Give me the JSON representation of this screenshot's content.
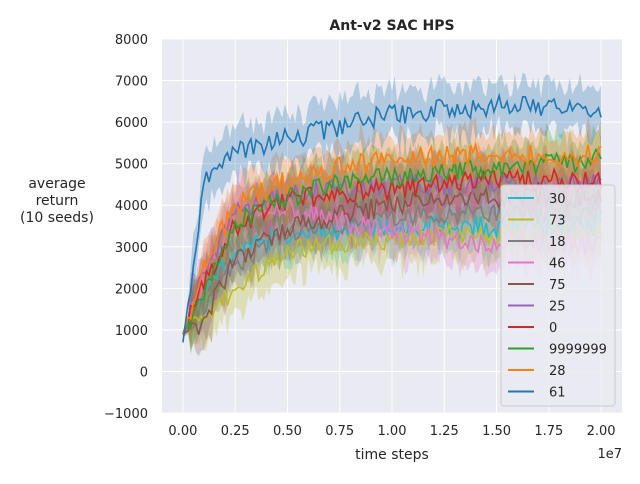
{
  "chart_data": {
    "type": "line",
    "title": "Ant-v2 SAC HPS",
    "xlabel": "time steps",
    "ylabel": [
      "average",
      "return",
      "(10 seeds)"
    ],
    "x_offset_label": "1e7",
    "xlim": [
      -0.1,
      2.1
    ],
    "ylim": [
      -1000,
      8000
    ],
    "x_ticks": [
      0.0,
      0.25,
      0.5,
      0.75,
      1.0,
      1.25,
      1.5,
      1.75,
      2.0
    ],
    "x_tick_labels": [
      "0.00",
      "0.25",
      "0.50",
      "0.75",
      "1.00",
      "1.25",
      "1.50",
      "1.75",
      "2.00"
    ],
    "y_ticks": [
      -1000,
      0,
      1000,
      2000,
      3000,
      4000,
      5000,
      6000,
      7000,
      8000
    ],
    "y_tick_labels": [
      "−1000",
      "0",
      "1000",
      "2000",
      "3000",
      "4000",
      "5000",
      "6000",
      "7000",
      "8000"
    ],
    "grid": true,
    "legend_position": "center-right",
    "x": [
      0.0,
      0.1,
      0.25,
      0.5,
      0.75,
      1.0,
      1.25,
      1.5,
      1.75,
      2.0
    ],
    "series": [
      {
        "name": "30",
        "color": "#17becf",
        "values": [
          900,
          1800,
          2900,
          3300,
          3400,
          3500,
          3500,
          3500,
          3500,
          3500
        ]
      },
      {
        "name": "73",
        "color": "#bcbd22",
        "values": [
          900,
          1300,
          2000,
          2900,
          3100,
          3200,
          3300,
          3300,
          3400,
          3400
        ]
      },
      {
        "name": "18",
        "color": "#7f7f7f",
        "values": [
          900,
          1600,
          2600,
          3300,
          3500,
          3700,
          3800,
          3800,
          3800,
          3800
        ]
      },
      {
        "name": "46",
        "color": "#e377c2",
        "values": [
          900,
          2200,
          3900,
          3900,
          3600,
          3400,
          3200,
          3100,
          3100,
          3000
        ]
      },
      {
        "name": "75",
        "color": "#8c564b",
        "values": [
          900,
          1200,
          2700,
          3400,
          3800,
          4000,
          4100,
          4200,
          4200,
          4200
        ]
      },
      {
        "name": "25",
        "color": "#9467bd",
        "values": [
          900,
          2400,
          3800,
          4300,
          4400,
          4500,
          4500,
          4500,
          4500,
          4500
        ]
      },
      {
        "name": "0",
        "color": "#d62728",
        "values": [
          900,
          2100,
          3500,
          4100,
          4300,
          4400,
          4500,
          4600,
          4600,
          4600
        ]
      },
      {
        "name": "9999999",
        "color": "#2ca02c",
        "values": [
          900,
          2000,
          3600,
          4200,
          4500,
          4700,
          4800,
          4900,
          5000,
          5100
        ]
      },
      {
        "name": "28",
        "color": "#ff7f0e",
        "values": [
          900,
          2500,
          4000,
          4600,
          4900,
          5100,
          5200,
          5200,
          5200,
          5200
        ]
      },
      {
        "name": "61",
        "color": "#1f77b4",
        "values": [
          700,
          4500,
          5300,
          5600,
          5900,
          6200,
          6300,
          6400,
          6400,
          6200
        ]
      }
    ]
  }
}
